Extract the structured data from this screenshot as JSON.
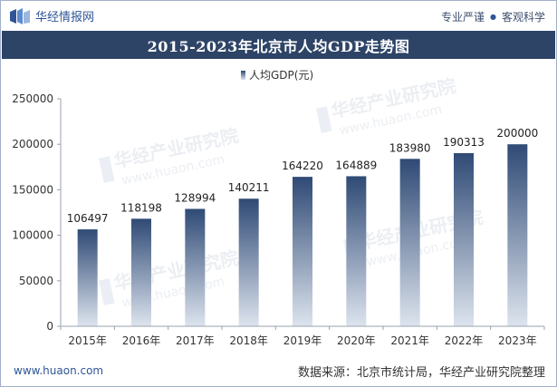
{
  "header": {
    "brand": "华经情报网",
    "tagline_left": "专业严谨",
    "tagline_right": "客观科学"
  },
  "chart_data": {
    "type": "bar",
    "title": "2015-2023年北京市人均GDP走势图",
    "legend": "人均GDP(元)",
    "legend_position": "top-center",
    "categories": [
      "2015年",
      "2016年",
      "2017年",
      "2018年",
      "2019年",
      "2020年",
      "2021年",
      "2022年",
      "2023年"
    ],
    "values": [
      106497,
      118198,
      128994,
      140211,
      164220,
      164889,
      183980,
      190313,
      200000
    ],
    "ylim": [
      0,
      250000
    ],
    "yticks": [
      0,
      50000,
      100000,
      150000,
      200000,
      250000
    ],
    "grid": false,
    "colors": {
      "bar_top": "#2f4a75",
      "bar_bottom": "#dde4ee",
      "axis": "#9aa3ad",
      "title_bg": "#2e4467"
    }
  },
  "watermark": {
    "text_cn": "华经产业研究院",
    "text_url": "www.huaon.com"
  },
  "footer": {
    "website": "www.huaon.com",
    "source": "数据来源：北京市统计局，华经产业研究院整理"
  }
}
